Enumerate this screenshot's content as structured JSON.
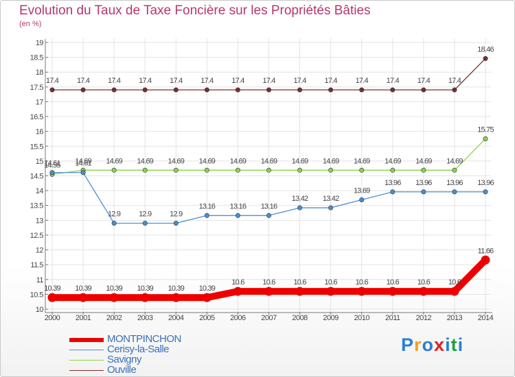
{
  "chart_data": {
    "type": "line",
    "title": "Evolution du Taux de Taxe Foncière sur les Propriétés Bâties",
    "unit_label": "(en %)",
    "x": [
      "2000",
      "2001",
      "2002",
      "2003",
      "2004",
      "2005",
      "2006",
      "2007",
      "2008",
      "2009",
      "2010",
      "2011",
      "2012",
      "2013",
      "2014"
    ],
    "ylim": [
      10,
      19
    ],
    "yticks": [
      "10",
      "10.5",
      "11",
      "11.5",
      "12",
      "12.5",
      "13",
      "13.5",
      "14",
      "14.5",
      "15",
      "15.5",
      "16",
      "16.5",
      "17",
      "17.5",
      "18",
      "18.5",
      "19"
    ],
    "grid": true,
    "series": [
      {
        "name": "MONTPINCHON",
        "color": "#ee0000",
        "values": [
          10.39,
          10.39,
          10.39,
          10.39,
          10.39,
          10.39,
          10.6,
          10.6,
          10.6,
          10.6,
          10.6,
          10.6,
          10.6,
          10.6,
          11.66
        ],
        "labels": [
          "10.39",
          "10.39",
          "10.39",
          "10.39",
          "10.39",
          "10.39",
          "10.6",
          "10.6",
          "10.6",
          "10.6",
          "10.6",
          "10.6",
          "10.6",
          "10.6",
          "11.66"
        ]
      },
      {
        "name": "Cerisy-la-Salle",
        "color": "#4a8fd0",
        "values": [
          14.61,
          14.61,
          12.9,
          12.9,
          12.9,
          13.16,
          13.16,
          13.16,
          13.42,
          13.42,
          13.69,
          13.96,
          13.96,
          13.96,
          13.96
        ],
        "labels": [
          "14.61",
          "14.61",
          "12.9",
          "12.9",
          "12.9",
          "13.16",
          "13.16",
          "13.16",
          "13.42",
          "13.42",
          "13.69",
          "13.96",
          "13.96",
          "13.96",
          "13.96"
        ]
      },
      {
        "name": "Savigny",
        "color": "#88d444",
        "values": [
          14.55,
          14.69,
          14.69,
          14.69,
          14.69,
          14.69,
          14.69,
          14.69,
          14.69,
          14.69,
          14.69,
          14.69,
          14.69,
          14.69,
          15.75
        ],
        "labels": [
          "14.55",
          "14.69",
          "14.69",
          "14.69",
          "14.69",
          "14.69",
          "14.69",
          "14.69",
          "14.69",
          "14.69",
          "14.69",
          "14.69",
          "14.69",
          "14.69",
          "15.75"
        ]
      },
      {
        "name": "Ouville",
        "color": "#7a2e2e",
        "values": [
          17.4,
          17.4,
          17.4,
          17.4,
          17.4,
          17.4,
          17.4,
          17.4,
          17.4,
          17.4,
          17.4,
          17.4,
          17.4,
          17.4,
          18.46
        ],
        "labels": [
          "17.4",
          "17.4",
          "17.4",
          "17.4",
          "17.4",
          "17.4",
          "17.4",
          "17.4",
          "17.4",
          "17.4",
          "17.4",
          "17.4",
          "17.4",
          "17.4",
          "18.46"
        ]
      }
    ],
    "legend_position": "bottom-left"
  },
  "logo": {
    "letters": [
      "P",
      "r",
      "o",
      "x",
      "i",
      "t",
      "i"
    ],
    "colors": [
      "#2a7fd4",
      "#f0a020",
      "#2a7fd4",
      "#e02020",
      "#2a7fd4",
      "#20a040",
      "#2a7fd4"
    ]
  }
}
